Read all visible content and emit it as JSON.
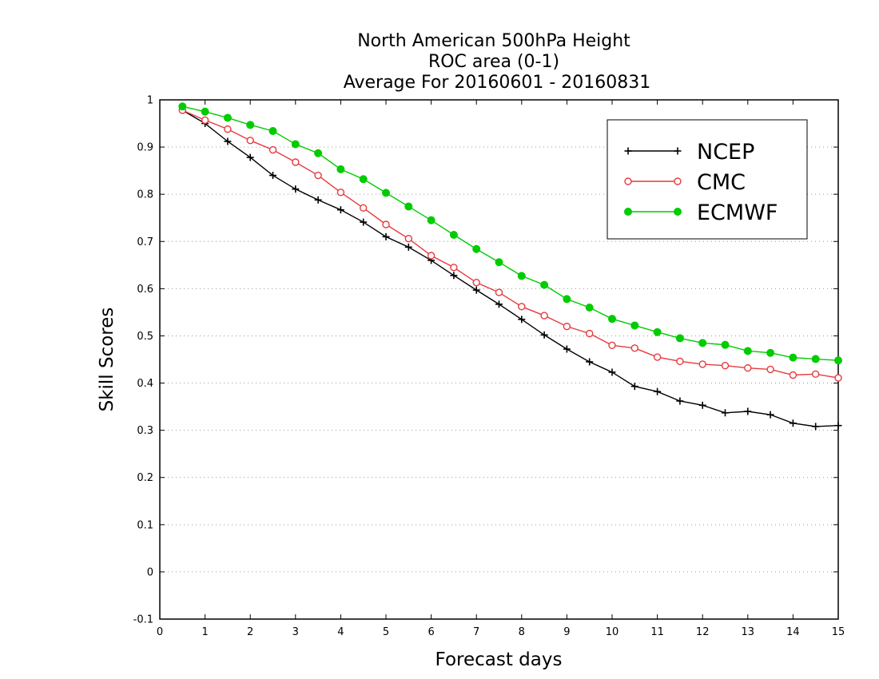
{
  "chart_data": {
    "type": "line",
    "title_lines": [
      "North American 500hPa Height",
      "ROC area (0-1)",
      "Average For 20160601 - 20160831"
    ],
    "xlabel": "Forecast days",
    "ylabel": "Skill Scores",
    "xlim": [
      0,
      15
    ],
    "ylim": [
      -0.1,
      1
    ],
    "x_ticks": [
      "0",
      "1",
      "2",
      "3",
      "4",
      "5",
      "6",
      "7",
      "8",
      "9",
      "10",
      "11",
      "12",
      "13",
      "14",
      "15"
    ],
    "y_ticks": [
      "-0.1",
      "0",
      "0.1",
      "0.2",
      "0.3",
      "0.4",
      "0.5",
      "0.6",
      "0.7",
      "0.8",
      "0.9",
      "1"
    ],
    "grid": "horizontal dotted",
    "legend_position": "top-right",
    "x": [
      0.5,
      1,
      1.5,
      2,
      2.5,
      3,
      3.5,
      4,
      4.5,
      5,
      5.5,
      6,
      6.5,
      7,
      7.5,
      8,
      8.5,
      9,
      9.5,
      10,
      10.5,
      11,
      11.5,
      12,
      12.5,
      13,
      13.5,
      14,
      14.5,
      15
    ],
    "series": [
      {
        "name": "NCEP",
        "color": "#000000",
        "marker": "plus",
        "values": [
          0.978,
          0.95,
          0.912,
          0.878,
          0.84,
          0.811,
          0.788,
          0.767,
          0.741,
          0.71,
          0.688,
          0.66,
          0.628,
          0.597,
          0.567,
          0.535,
          0.502,
          0.472,
          0.445,
          0.423,
          0.393,
          0.382,
          0.362,
          0.353,
          0.337,
          0.34,
          0.333,
          0.315,
          0.308,
          0.31
        ]
      },
      {
        "name": "CMC",
        "color": "#e8393d",
        "marker": "open-circle",
        "values": [
          0.978,
          0.957,
          0.938,
          0.914,
          0.894,
          0.868,
          0.84,
          0.804,
          0.771,
          0.736,
          0.706,
          0.67,
          0.645,
          0.613,
          0.592,
          0.562,
          0.543,
          0.52,
          0.505,
          0.48,
          0.474,
          0.455,
          0.446,
          0.44,
          0.437,
          0.432,
          0.429,
          0.417,
          0.419,
          0.411
        ]
      },
      {
        "name": "ECMWF",
        "color": "#00cc00",
        "marker": "filled-circle",
        "values": [
          0.986,
          0.975,
          0.962,
          0.947,
          0.934,
          0.906,
          0.887,
          0.853,
          0.832,
          0.803,
          0.774,
          0.745,
          0.714,
          0.684,
          0.656,
          0.627,
          0.608,
          0.578,
          0.56,
          0.536,
          0.522,
          0.508,
          0.495,
          0.485,
          0.481,
          0.468,
          0.464,
          0.454,
          0.451,
          0.448
        ]
      }
    ]
  }
}
